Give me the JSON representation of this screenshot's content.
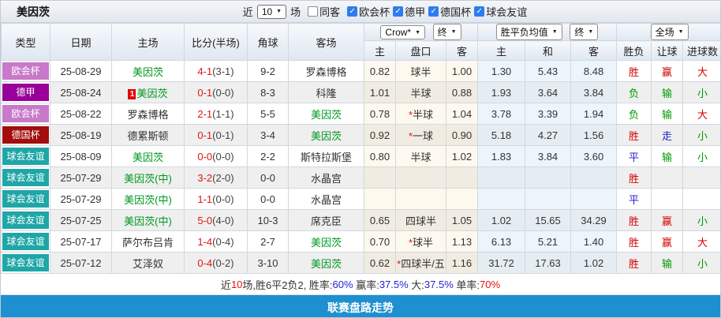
{
  "header_bar": {
    "team": "美因茨",
    "recent_label": "近",
    "recent_value": "10",
    "games_label": "场",
    "same_away_label": "同客",
    "same_away_checked": false,
    "filters": [
      {
        "label": "欧会杯",
        "checked": true
      },
      {
        "label": "德甲",
        "checked": true
      },
      {
        "label": "德国杯",
        "checked": true
      },
      {
        "label": "球会友谊",
        "checked": true
      }
    ]
  },
  "table": {
    "columns": [
      "类型",
      "日期",
      "主场",
      "比分(半场)",
      "角球",
      "客场",
      "主",
      "盘口",
      "客",
      "主",
      "和",
      "客",
      "胜负",
      "让球",
      "进球数"
    ],
    "selects": {
      "company": "Crow*",
      "company_time": "终",
      "avg": "胜平负均值",
      "avg_time": "终",
      "scope": "全场"
    },
    "rows": [
      {
        "league": "欧会杯",
        "league_color": "#C879C8",
        "date": "25-08-29",
        "home": "美因茨",
        "home_green": true,
        "home_redcard": null,
        "score": "4-1",
        "half": "(3-1)",
        "corner": "9-2",
        "away": "罗森博格",
        "away_green": false,
        "h_home": "0.82",
        "handicap": "球半",
        "handicap_star": false,
        "h_away": "1.00",
        "avg_home": "1.30",
        "avg_draw": "5.43",
        "avg_away": "8.48",
        "result": [
          "胜",
          "red"
        ],
        "handicap_result": [
          "赢",
          "red"
        ],
        "goals_result": [
          "大",
          "red"
        ]
      },
      {
        "league": "德甲",
        "league_color": "#990099",
        "date": "25-08-24",
        "home": "美因茨",
        "home_green": true,
        "home_redcard": "1",
        "score": "0-1",
        "half": "(0-0)",
        "corner": "8-3",
        "away": "科隆",
        "away_green": false,
        "h_home": "1.01",
        "handicap": "半球",
        "handicap_star": false,
        "h_away": "0.88",
        "avg_home": "1.93",
        "avg_draw": "3.64",
        "avg_away": "3.84",
        "result": [
          "负",
          "green"
        ],
        "handicap_result": [
          "输",
          "green"
        ],
        "goals_result": [
          "小",
          "green"
        ]
      },
      {
        "league": "欧会杯",
        "league_color": "#C879C8",
        "date": "25-08-22",
        "home": "罗森博格",
        "home_green": false,
        "home_redcard": null,
        "score": "2-1",
        "half": "(1-1)",
        "corner": "5-5",
        "away": "美因茨",
        "away_green": true,
        "h_home": "0.78",
        "handicap": "半球",
        "handicap_star": true,
        "h_away": "1.04",
        "avg_home": "3.78",
        "avg_draw": "3.39",
        "avg_away": "1.94",
        "result": [
          "负",
          "green"
        ],
        "handicap_result": [
          "输",
          "green"
        ],
        "goals_result": [
          "大",
          "red"
        ]
      },
      {
        "league": "德国杯",
        "league_color": "#A30D0D",
        "date": "25-08-19",
        "home": "德累斯顿",
        "home_green": false,
        "home_redcard": null,
        "score": "0-1",
        "half": "(0-1)",
        "corner": "3-4",
        "away": "美因茨",
        "away_green": true,
        "h_home": "0.92",
        "handicap": "一球",
        "handicap_star": true,
        "h_away": "0.90",
        "avg_home": "5.18",
        "avg_draw": "4.27",
        "avg_away": "1.56",
        "result": [
          "胜",
          "red"
        ],
        "handicap_result": [
          "走",
          "blue"
        ],
        "goals_result": [
          "小",
          "green"
        ]
      },
      {
        "league": "球会友谊",
        "league_color": "#1FA6A6",
        "date": "25-08-09",
        "home": "美因茨",
        "home_green": true,
        "home_redcard": null,
        "score": "0-0",
        "half": "(0-0)",
        "corner": "2-2",
        "away": "斯特拉斯堡",
        "away_green": false,
        "h_home": "0.80",
        "handicap": "半球",
        "handicap_star": false,
        "h_away": "1.02",
        "avg_home": "1.83",
        "avg_draw": "3.84",
        "avg_away": "3.60",
        "result": [
          "平",
          "blue"
        ],
        "handicap_result": [
          "输",
          "green"
        ],
        "goals_result": [
          "小",
          "green"
        ]
      },
      {
        "league": "球会友谊",
        "league_color": "#1FA6A6",
        "date": "25-07-29",
        "home": "美因茨(中)",
        "home_green": true,
        "home_redcard": null,
        "score": "3-2",
        "half": "(2-0)",
        "corner": "0-0",
        "away": "水晶宫",
        "away_green": false,
        "h_home": "",
        "handicap": "",
        "handicap_star": false,
        "h_away": "",
        "avg_home": "",
        "avg_draw": "",
        "avg_away": "",
        "result": [
          "胜",
          "red"
        ],
        "handicap_result": null,
        "goals_result": null
      },
      {
        "league": "球会友谊",
        "league_color": "#1FA6A6",
        "date": "25-07-29",
        "home": "美因茨(中)",
        "home_green": true,
        "home_redcard": null,
        "score": "1-1",
        "half": "(0-0)",
        "corner": "0-0",
        "away": "水晶宫",
        "away_green": false,
        "h_home": "",
        "handicap": "",
        "handicap_star": false,
        "h_away": "",
        "avg_home": "",
        "avg_draw": "",
        "avg_away": "",
        "result": [
          "平",
          "blue"
        ],
        "handicap_result": null,
        "goals_result": null
      },
      {
        "league": "球会友谊",
        "league_color": "#1FA6A6",
        "date": "25-07-25",
        "home": "美因茨(中)",
        "home_green": true,
        "home_redcard": null,
        "score": "5-0",
        "half": "(4-0)",
        "corner": "10-3",
        "away": "席克臣",
        "away_green": false,
        "h_home": "0.65",
        "handicap": "四球半",
        "handicap_star": false,
        "h_away": "1.05",
        "avg_home": "1.02",
        "avg_draw": "15.65",
        "avg_away": "34.29",
        "result": [
          "胜",
          "red"
        ],
        "handicap_result": [
          "赢",
          "red"
        ],
        "goals_result": [
          "小",
          "green"
        ]
      },
      {
        "league": "球会友谊",
        "league_color": "#1FA6A6",
        "date": "25-07-17",
        "home": "萨尔布吕肯",
        "home_green": false,
        "home_redcard": null,
        "score": "1-4",
        "half": "(0-4)",
        "corner": "2-7",
        "away": "美因茨",
        "away_green": true,
        "h_home": "0.70",
        "handicap": "球半",
        "handicap_star": true,
        "h_away": "1.13",
        "avg_home": "6.13",
        "avg_draw": "5.21",
        "avg_away": "1.40",
        "result": [
          "胜",
          "red"
        ],
        "handicap_result": [
          "赢",
          "red"
        ],
        "goals_result": [
          "大",
          "red"
        ]
      },
      {
        "league": "球会友谊",
        "league_color": "#1FA6A6",
        "date": "25-07-12",
        "home": "艾泽奴",
        "home_green": false,
        "home_redcard": null,
        "score": "0-4",
        "half": "(0-2)",
        "corner": "3-10",
        "away": "美因茨",
        "away_green": true,
        "h_home": "0.62",
        "handicap": "四球半/五",
        "handicap_star": true,
        "h_away": "1.16",
        "avg_home": "31.72",
        "avg_draw": "17.63",
        "avg_away": "1.02",
        "result": [
          "胜",
          "red"
        ],
        "handicap_result": [
          "输",
          "green"
        ],
        "goals_result": [
          "小",
          "green"
        ]
      }
    ]
  },
  "summary": [
    {
      "text": "近",
      "color": "#333333"
    },
    {
      "text": "10",
      "color": "#E01515"
    },
    {
      "text": "场,胜6平2负2, 胜率:",
      "color": "#333333"
    },
    {
      "text": "60%",
      "color": "#2323D6"
    },
    {
      "text": " 赢率:",
      "color": "#333333"
    },
    {
      "text": "37.5%",
      "color": "#2323D6"
    },
    {
      "text": " 大:",
      "color": "#333333"
    },
    {
      "text": "37.5%",
      "color": "#2323D6"
    },
    {
      "text": " 单率:",
      "color": "#333333"
    },
    {
      "text": "70%",
      "color": "#E01515"
    }
  ],
  "footer": {
    "label": "联赛盘路走势"
  },
  "colors": {
    "footer_bar": "#1E8FD0",
    "checkbox_checked": "#2D7CF0",
    "win_red": "#D40000",
    "lose_green": "#009900",
    "draw_blue": "#2323CC",
    "team_green": "#009922",
    "score_red": "#E01515"
  }
}
